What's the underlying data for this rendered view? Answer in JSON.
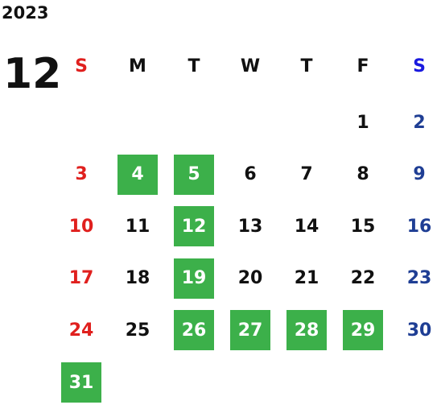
{
  "calendar": {
    "year": "2023",
    "month": "12",
    "weekdays": [
      "S",
      "M",
      "T",
      "W",
      "T",
      "F",
      "S"
    ],
    "weeks": [
      [
        null,
        null,
        null,
        null,
        null,
        {
          "label": "1",
          "marked": false
        },
        {
          "label": "2",
          "marked": false
        }
      ],
      [
        {
          "label": "3",
          "marked": false
        },
        {
          "label": "4",
          "marked": true
        },
        {
          "label": "5",
          "marked": true
        },
        {
          "label": "6",
          "marked": false
        },
        {
          "label": "7",
          "marked": false
        },
        {
          "label": "8",
          "marked": false
        },
        {
          "label": "9",
          "marked": false
        }
      ],
      [
        {
          "label": "10",
          "marked": false
        },
        {
          "label": "11",
          "marked": false
        },
        {
          "label": "12",
          "marked": true
        },
        {
          "label": "13",
          "marked": false
        },
        {
          "label": "14",
          "marked": false
        },
        {
          "label": "15",
          "marked": false
        },
        {
          "label": "16",
          "marked": false
        }
      ],
      [
        {
          "label": "17",
          "marked": false
        },
        {
          "label": "18",
          "marked": false
        },
        {
          "label": "19",
          "marked": true
        },
        {
          "label": "20",
          "marked": false
        },
        {
          "label": "21",
          "marked": false
        },
        {
          "label": "22",
          "marked": false
        },
        {
          "label": "23",
          "marked": false
        }
      ],
      [
        {
          "label": "24",
          "marked": false
        },
        {
          "label": "25",
          "marked": false
        },
        {
          "label": "26",
          "marked": true
        },
        {
          "label": "27",
          "marked": true
        },
        {
          "label": "28",
          "marked": true
        },
        {
          "label": "29",
          "marked": true
        },
        {
          "label": "30",
          "marked": false
        }
      ],
      [
        {
          "label": "31",
          "marked": true
        },
        null,
        null,
        null,
        null,
        null,
        null
      ]
    ],
    "sunday_color": "#e0201e",
    "saturday_color": "#1f3e94",
    "saturday_header_color": "#1a1adf",
    "mark_color": "#3cb04a"
  }
}
